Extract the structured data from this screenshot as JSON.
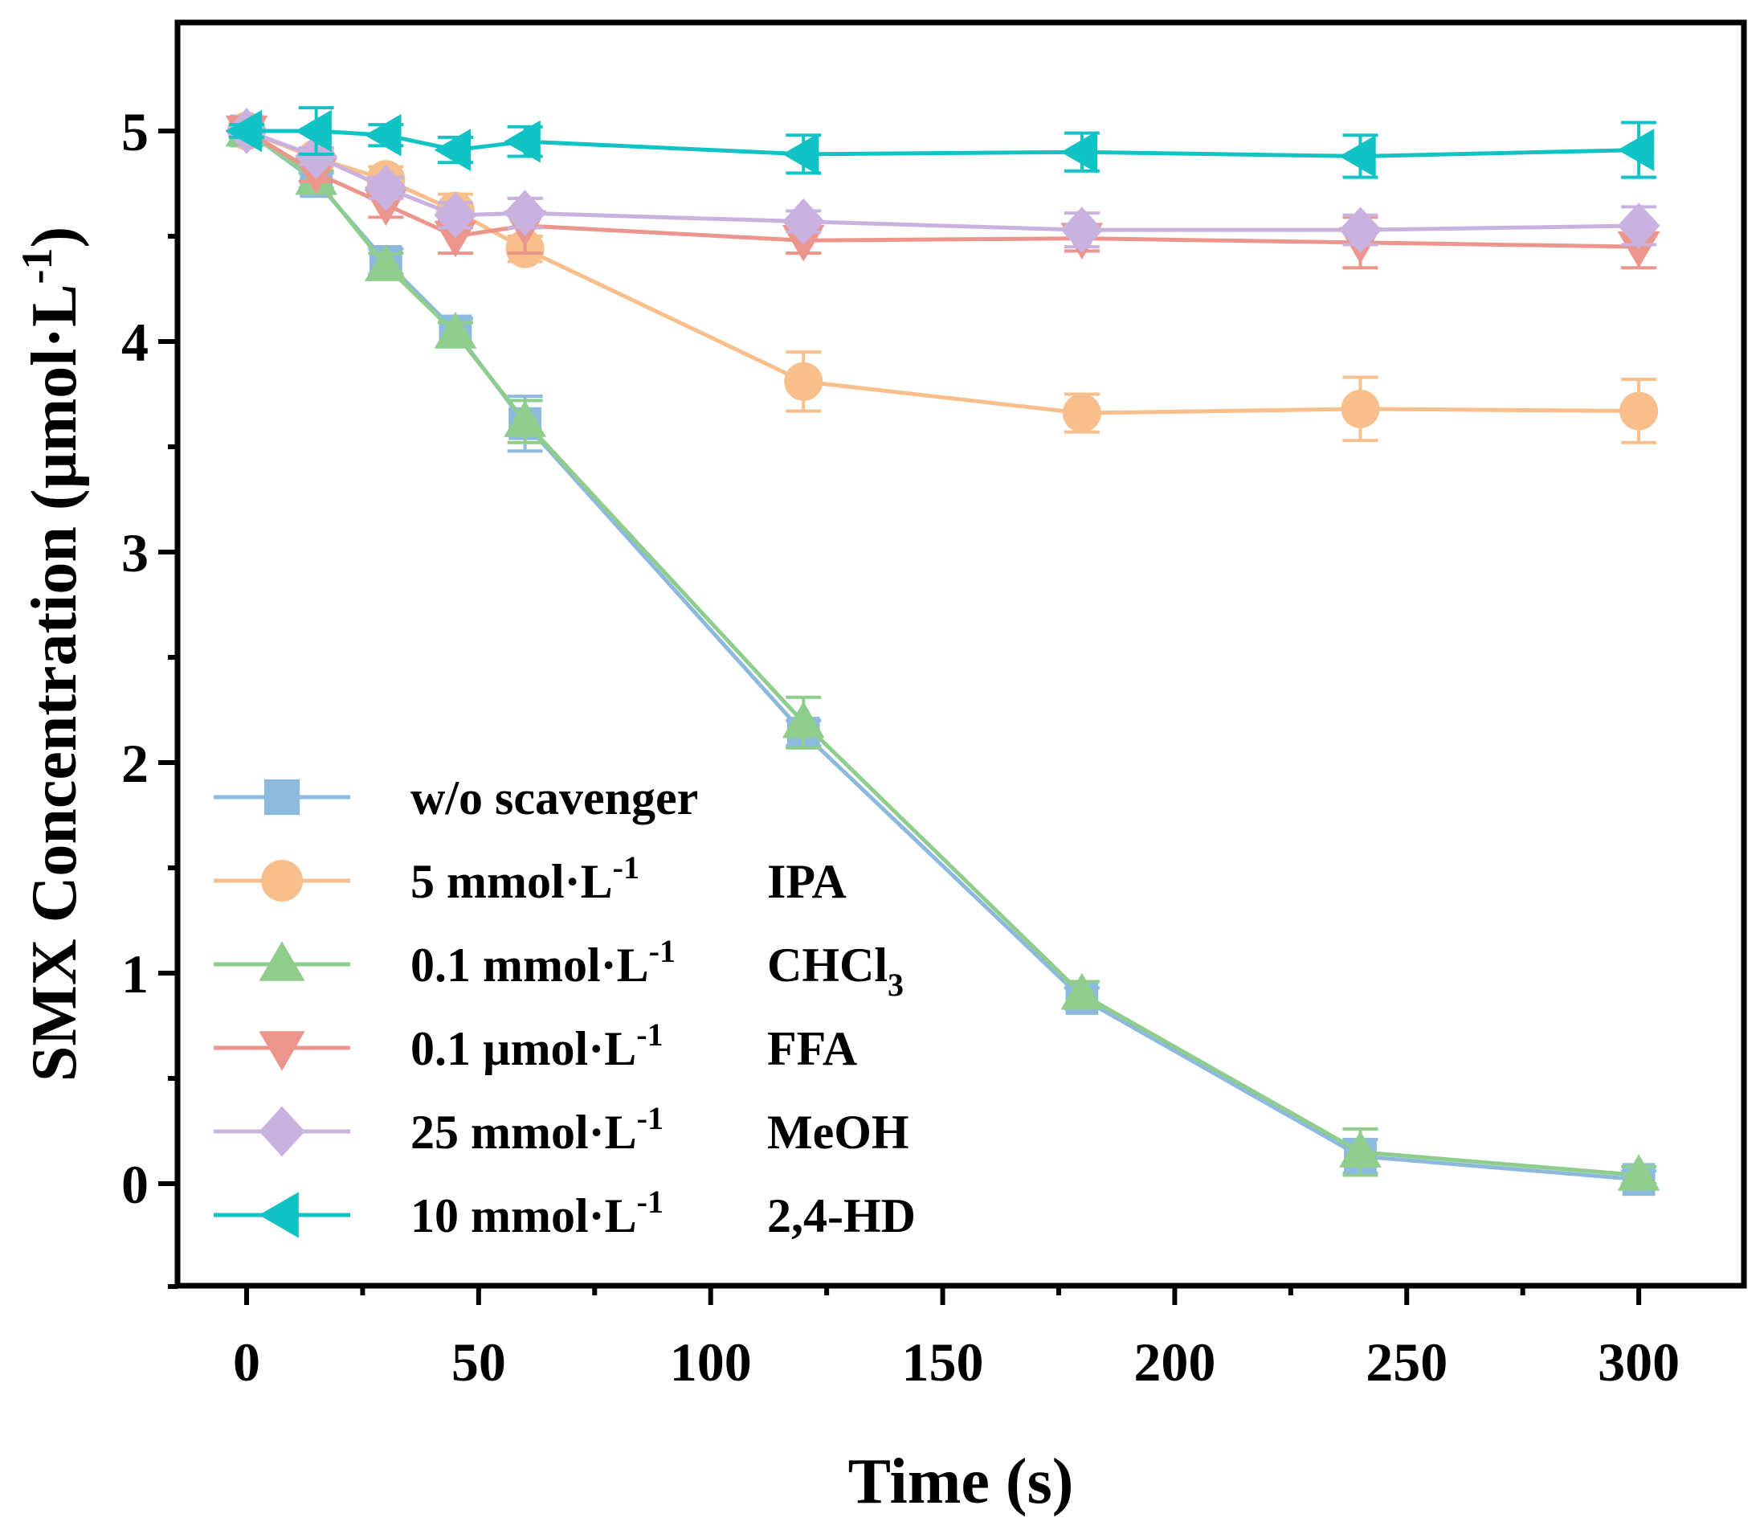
{
  "chart_data": {
    "type": "line",
    "xlabel": "Time (s)",
    "ylabel_main": "SMX Concentration (µmol·L",
    "ylabel_sup": "-1",
    "ylabel_close": ")",
    "xlim": [
      -15,
      325
    ],
    "ylim": [
      -0.5,
      5.5
    ],
    "xticks": [
      0,
      50,
      100,
      150,
      200,
      250,
      300
    ],
    "yticks": [
      0,
      1,
      2,
      3,
      4,
      5
    ],
    "x": [
      0,
      15,
      30,
      45,
      60,
      120,
      180,
      240,
      300
    ],
    "series": [
      {
        "name": "w/o scavenger",
        "legend_prefix": "w/o scavenger",
        "legend_sup": "",
        "legend_agent": "",
        "legend_sub": "",
        "color": "#8db9de",
        "marker": "square",
        "values": [
          5.0,
          4.76,
          4.38,
          4.05,
          3.61,
          2.14,
          0.88,
          0.13,
          0.02
        ],
        "errors": [
          0.03,
          0.04,
          0.06,
          0.06,
          0.13,
          0.06,
          0.05,
          0.08,
          0.04
        ]
      },
      {
        "name": "5 mmol·L-1 IPA",
        "legend_prefix": "5 mmol·L",
        "legend_sup": "-1",
        "legend_agent": "IPA",
        "legend_sub": "",
        "color": "#f8be8c",
        "marker": "circle",
        "values": [
          5.0,
          4.87,
          4.77,
          4.62,
          4.44,
          3.81,
          3.66,
          3.68,
          3.67
        ],
        "errors": [
          0.03,
          0.04,
          0.06,
          0.08,
          0.06,
          0.14,
          0.09,
          0.15,
          0.15
        ]
      },
      {
        "name": "0.1 mmol·L-1 CHCl3",
        "legend_prefix": "0.1 mmol·L",
        "legend_sup": "-1",
        "legend_agent": "CHCl",
        "legend_sub": "3",
        "color": "#8fcd8d",
        "marker": "triangle-up",
        "values": [
          5.0,
          4.77,
          4.36,
          4.04,
          3.62,
          2.19,
          0.9,
          0.15,
          0.04
        ],
        "errors": [
          0.03,
          0.04,
          0.06,
          0.05,
          0.1,
          0.12,
          0.06,
          0.11,
          0.04
        ]
      },
      {
        "name": "0.1 µmol·L-1 FFA",
        "legend_prefix": "0.1 µmol·L",
        "legend_sup": "-1",
        "legend_agent": "FFA",
        "legend_sub": "",
        "color": "#ec958c",
        "marker": "triangle-down",
        "values": [
          5.0,
          4.8,
          4.65,
          4.5,
          4.55,
          4.48,
          4.49,
          4.47,
          4.45
        ],
        "errors": [
          0.03,
          0.04,
          0.06,
          0.08,
          0.13,
          0.06,
          0.06,
          0.12,
          0.1
        ]
      },
      {
        "name": "25 mmol·L-1 MeOH",
        "legend_prefix": "25 mmol·L",
        "legend_sup": "-1",
        "legend_agent": "MeOH",
        "legend_sub": "",
        "color": "#c9b2df",
        "marker": "diamond",
        "values": [
          5.0,
          4.88,
          4.73,
          4.6,
          4.61,
          4.57,
          4.53,
          4.53,
          4.55
        ],
        "errors": [
          0.03,
          0.04,
          0.05,
          0.06,
          0.07,
          0.05,
          0.08,
          0.07,
          0.09
        ]
      },
      {
        "name": "10 mmol·L-1 2,4-HD",
        "legend_prefix": "10 mmol·L",
        "legend_sup": "-1",
        "legend_agent": "2,4-HD",
        "legend_sub": "",
        "color": "#12c3c6",
        "marker": "triangle-left",
        "values": [
          5.0,
          5.0,
          4.98,
          4.91,
          4.95,
          4.89,
          4.9,
          4.88,
          4.91
        ],
        "errors": [
          0.03,
          0.11,
          0.05,
          0.06,
          0.07,
          0.09,
          0.09,
          0.1,
          0.13
        ]
      }
    ]
  }
}
